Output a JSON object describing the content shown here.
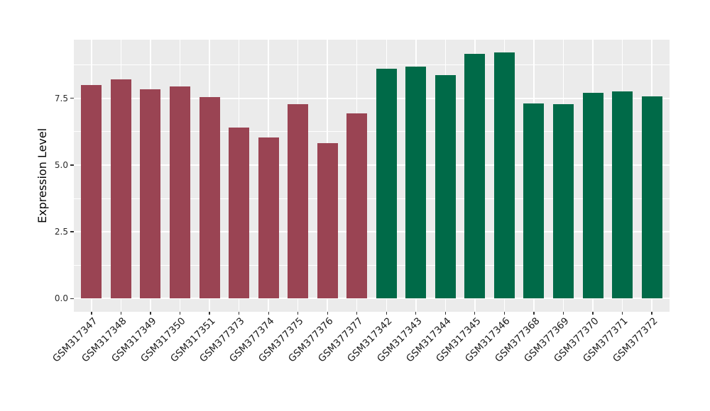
{
  "chart_data": {
    "type": "bar",
    "title": "",
    "xlabel": "",
    "ylabel": "Expression Level",
    "categories": [
      "GSM317347",
      "GSM317348",
      "GSM317349",
      "GSM317350",
      "GSM317351",
      "GSM377373",
      "GSM377374",
      "GSM377375",
      "GSM377376",
      "GSM377377",
      "GSM317342",
      "GSM317343",
      "GSM317344",
      "GSM317345",
      "GSM317346",
      "GSM377368",
      "GSM377369",
      "GSM377370",
      "GSM377371",
      "GSM377372"
    ],
    "values": [
      8.0,
      8.2,
      7.85,
      7.95,
      7.55,
      6.4,
      6.03,
      7.27,
      5.82,
      6.93,
      8.62,
      8.68,
      8.37,
      9.18,
      9.21,
      7.32,
      7.29,
      7.7,
      7.75,
      7.58
    ],
    "bar_colors": [
      "#9A4453",
      "#9A4453",
      "#9A4453",
      "#9A4453",
      "#9A4453",
      "#9A4453",
      "#9A4453",
      "#9A4453",
      "#9A4453",
      "#9A4453",
      "#006A48",
      "#006A48",
      "#006A48",
      "#006A48",
      "#006A48",
      "#006A48",
      "#006A48",
      "#006A48",
      "#006A48",
      "#006A48"
    ],
    "yticks": [
      "0.0",
      "2.5",
      "5.0",
      "7.5"
    ],
    "ytick_values": [
      0,
      2.5,
      5,
      7.5
    ],
    "yticks_minor": [
      1.25,
      3.75,
      6.25,
      8.75
    ],
    "ylim": [
      -0.5,
      9.7
    ],
    "grid": "white major+minor horizontal, white major vertical",
    "legend": "none"
  },
  "style": {
    "figure_bg": "#FFFFFF",
    "panel_bg": "#EBEBEB",
    "grid_color": "#FFFFFF",
    "tick_color": "#333333",
    "axis_text_color": "#2B2B2B",
    "x_label_color": "#1A1A1A",
    "axis_title_color": "#000000",
    "bar_color_group1": "#9A4453",
    "bar_color_group2": "#006A48"
  }
}
